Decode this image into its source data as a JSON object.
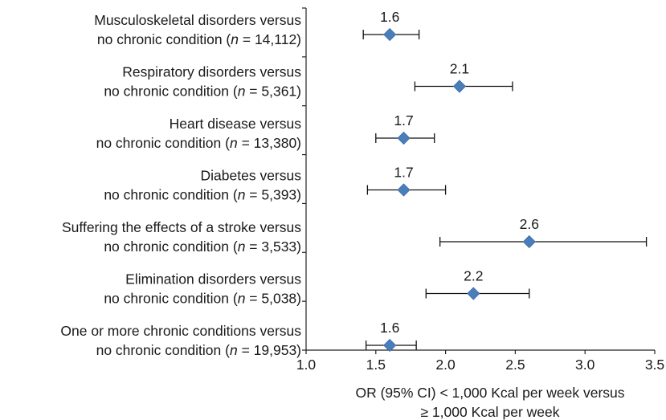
{
  "chart_data": {
    "type": "scatter",
    "style": "forest-plot",
    "xlabel_lines": [
      "OR (95% CI) < 1,000 Kcal per week versus",
      "≥ 1,000 Kcal per week"
    ],
    "xlim": [
      1.0,
      3.5
    ],
    "x_ticks": [
      "1.0",
      "1.5",
      "2.0",
      "2.5",
      "3.0",
      "3.5"
    ],
    "grid": false,
    "legend": "none",
    "marker_color": "#4a7ebb",
    "categories": [
      {
        "line1": "Musculoskeletal disorders versus",
        "line2_prefix": "no chronic condition (",
        "n_symbol": "n",
        "line2_suffix": " = 14,112)"
      },
      {
        "line1": "Respiratory disorders versus",
        "line2_prefix": "no chronic condition (",
        "n_symbol": "n",
        "line2_suffix": " = 5,361)"
      },
      {
        "line1": "Heart disease versus",
        "line2_prefix": "no chronic condition (",
        "n_symbol": "n",
        "line2_suffix": " = 13,380)"
      },
      {
        "line1": "Diabetes versus",
        "line2_prefix": "no chronic condition (",
        "n_symbol": "n",
        "line2_suffix": " = 5,393)"
      },
      {
        "line1": "Suffering the effects of a stroke versus",
        "line2_prefix": "no chronic condition (",
        "n_symbol": "n",
        "line2_suffix": " = 3,533)"
      },
      {
        "line1": "Elimination disorders versus",
        "line2_prefix": "no chronic condition (",
        "n_symbol": "n",
        "line2_suffix": " = 5,038)"
      },
      {
        "line1": "One or more chronic conditions versus",
        "line2_prefix": "no chronic condition (",
        "n_symbol": "n",
        "line2_suffix": " = 19,953)"
      }
    ],
    "points": [
      {
        "or": 1.6,
        "ci_low": 1.41,
        "ci_high": 1.81,
        "label": "1.6"
      },
      {
        "or": 2.1,
        "ci_low": 1.78,
        "ci_high": 2.48,
        "label": "2.1"
      },
      {
        "or": 1.7,
        "ci_low": 1.5,
        "ci_high": 1.92,
        "label": "1.7"
      },
      {
        "or": 1.7,
        "ci_low": 1.44,
        "ci_high": 2.0,
        "label": "1.7"
      },
      {
        "or": 2.6,
        "ci_low": 1.96,
        "ci_high": 3.44,
        "label": "2.6"
      },
      {
        "or": 2.2,
        "ci_low": 1.86,
        "ci_high": 2.6,
        "label": "2.2"
      },
      {
        "or": 1.6,
        "ci_low": 1.43,
        "ci_high": 1.79,
        "label": "1.6"
      }
    ]
  }
}
